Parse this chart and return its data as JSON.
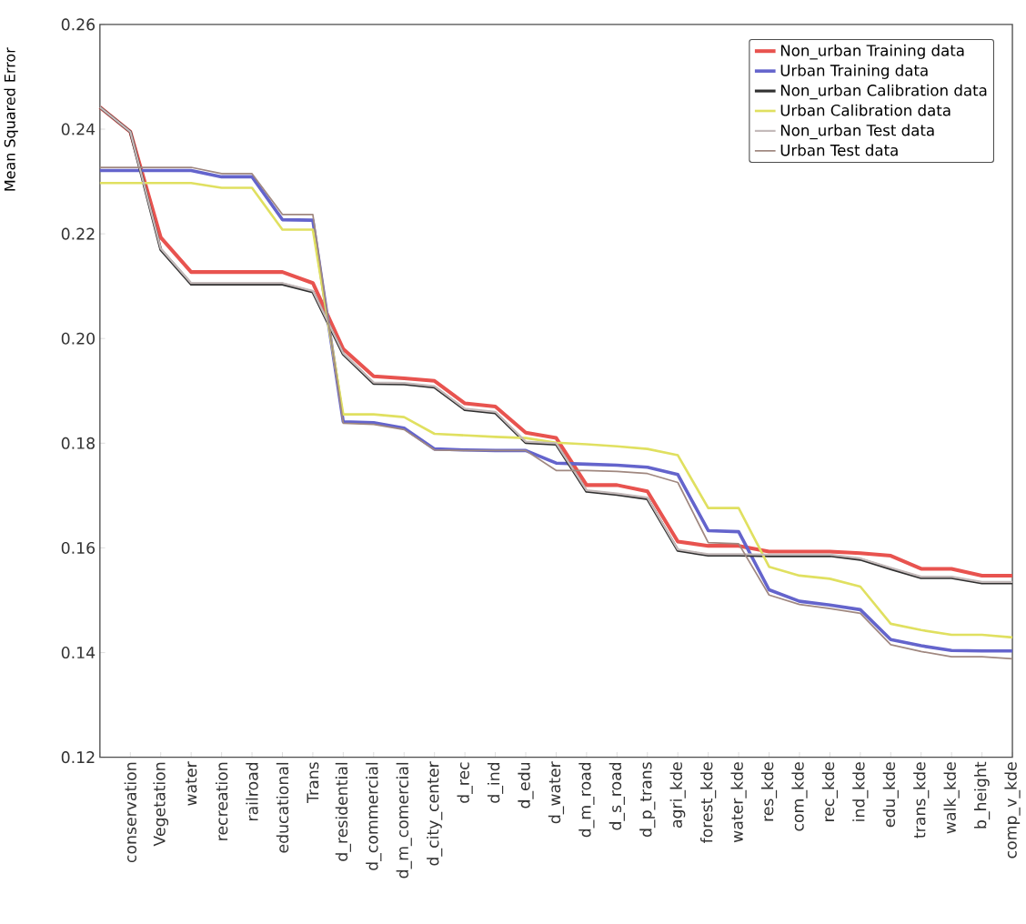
{
  "chart_data": {
    "type": "line",
    "ylabel": "Mean Squared Error",
    "categories": [
      null,
      "conservation",
      "Vegetation",
      "water",
      "recreation",
      "railroad",
      "educational",
      "Trans",
      "d_residential",
      "d_commercial",
      "d_m_comercial",
      "d_city_center",
      "d_rec",
      "d_ind",
      "d_edu",
      "d_water",
      "d_m_road",
      "d_s_road",
      "d_p_trans",
      "agri_kde",
      "forest_kde",
      "water_kde",
      "res_kde",
      "com_kde",
      "rec_kde",
      "ind_kde",
      "edu_kde",
      "trans_kde",
      "walk_kde",
      "b_height",
      "comp_v_kde"
    ],
    "series": [
      {
        "name": "Non_urban Training data",
        "color": "#e8534f",
        "values": [
          0.2442,
          0.2395,
          0.2193,
          0.2127,
          0.2127,
          0.2127,
          0.2127,
          0.2106,
          0.198,
          0.1928,
          0.1924,
          0.1919,
          0.1876,
          0.187,
          0.182,
          0.181,
          0.172,
          0.172,
          0.1708,
          0.1612,
          0.1604,
          0.1604,
          0.1593,
          0.1593,
          0.1593,
          0.159,
          0.1585,
          0.156,
          0.156,
          0.1547,
          0.1547
        ]
      },
      {
        "name": "Urban Training data",
        "color": "#6464cc",
        "values": [
          0.2321,
          0.2321,
          0.2321,
          0.2321,
          0.2309,
          0.2309,
          0.2227,
          0.2226,
          0.1841,
          0.1839,
          0.1829,
          0.1789,
          0.1787,
          0.1786,
          0.1786,
          0.1762,
          0.176,
          0.1758,
          0.1754,
          0.174,
          0.1633,
          0.1631,
          0.152,
          0.1498,
          0.1491,
          0.1482,
          0.1425,
          0.1413,
          0.1404,
          0.1403,
          0.1403
        ]
      },
      {
        "name": "Non_urban Calibration data",
        "color": "#303030",
        "values": [
          0.2442,
          0.2395,
          0.217,
          0.2104,
          0.2104,
          0.2104,
          0.2104,
          0.2089,
          0.197,
          0.1914,
          0.1913,
          0.1907,
          0.1864,
          0.1858,
          0.1801,
          0.1798,
          0.1708,
          0.1702,
          0.1694,
          0.1595,
          0.1586,
          0.1586,
          0.1585,
          0.1585,
          0.1585,
          0.1578,
          0.156,
          0.1543,
          0.1543,
          0.1533,
          0.1533
        ]
      },
      {
        "name": "Urban Calibration data",
        "color": "#e0e060",
        "values": [
          0.2297,
          0.2297,
          0.2297,
          0.2297,
          0.2288,
          0.2288,
          0.2208,
          0.2208,
          0.1855,
          0.1855,
          0.185,
          0.1818,
          0.1815,
          0.1812,
          0.181,
          0.1801,
          0.1798,
          0.1794,
          0.1789,
          0.1777,
          0.1676,
          0.1676,
          0.1564,
          0.1547,
          0.1541,
          0.1526,
          0.1455,
          0.1443,
          0.1434,
          0.1434,
          0.1429
        ]
      },
      {
        "name": "Non_urban Test data",
        "color": "#c4baba",
        "values": [
          0.2442,
          0.2395,
          0.2172,
          0.2106,
          0.2106,
          0.2106,
          0.2106,
          0.2091,
          0.1972,
          0.1916,
          0.1915,
          0.1909,
          0.1866,
          0.186,
          0.1803,
          0.18,
          0.171,
          0.1704,
          0.1696,
          0.1597,
          0.1588,
          0.1588,
          0.1587,
          0.1587,
          0.1587,
          0.158,
          0.1562,
          0.1545,
          0.1545,
          0.1535,
          0.1535
        ]
      },
      {
        "name": "Urban Test data",
        "color": "#a08880",
        "values": [
          0.2327,
          0.2327,
          0.2327,
          0.2327,
          0.2315,
          0.2315,
          0.2237,
          0.2237,
          0.1838,
          0.1836,
          0.1826,
          0.1787,
          0.1786,
          0.1786,
          0.1786,
          0.1748,
          0.1748,
          0.1746,
          0.1742,
          0.1725,
          0.161,
          0.1608,
          0.151,
          0.1492,
          0.1484,
          0.1475,
          0.1415,
          0.1402,
          0.1392,
          0.1392,
          0.1388
        ]
      }
    ],
    "ylim": [
      0.12,
      0.26
    ],
    "yticks": [
      0.12,
      0.14,
      0.16,
      0.18,
      {
        "value": 0.2,
        "label": "0.20"
      },
      0.22,
      0.24,
      0.26
    ],
    "grid": false,
    "legend": "top right",
    "marker": "none",
    "line_style": "solid"
  }
}
